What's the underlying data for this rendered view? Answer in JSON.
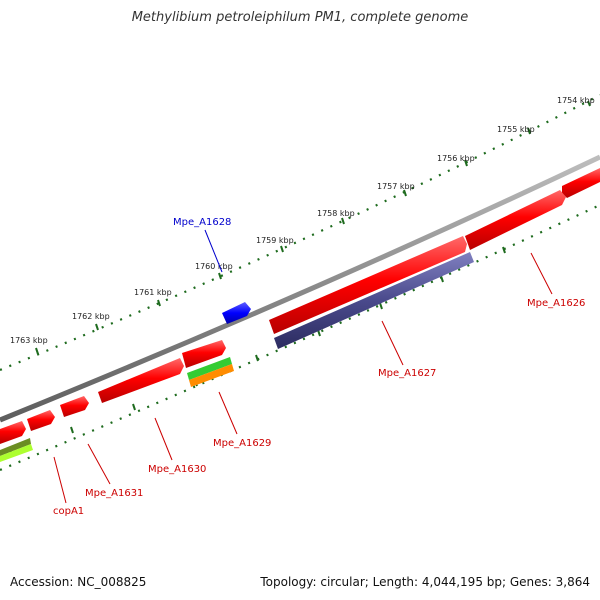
{
  "title": "Methylibium petroleiphilum PM1, complete genome",
  "footer": {
    "accession": "Accession: NC_008825",
    "summary": "Topology: circular; Length: 4,044,195 bp; Genes: 3,864"
  },
  "colors": {
    "backbone": "#8a8a8a",
    "ticks": "#1e6b1e",
    "forward_gene": "#ff0000",
    "reverse_gene_blue": "#4a4a8c",
    "label_red": "#cc0000",
    "label_blue": "#0000cc"
  },
  "scale_labels": [
    "1754 kbp",
    "1755 kbp",
    "1756 kbp",
    "1757 kbp",
    "1758 kbp",
    "1759 kbp",
    "1760 kbp",
    "1761 kbp",
    "1762 kbp",
    "1763 kbp"
  ],
  "gene_labels": {
    "mpe_a1628": "Mpe_A1628",
    "mpe_a1626": "Mpe_A1626",
    "mpe_a1627": "Mpe_A1627",
    "mpe_a1629": "Mpe_A1629",
    "mpe_a1630": "Mpe_A1630",
    "mpe_a1631": "Mpe_A1631",
    "copa1": "copA1"
  }
}
